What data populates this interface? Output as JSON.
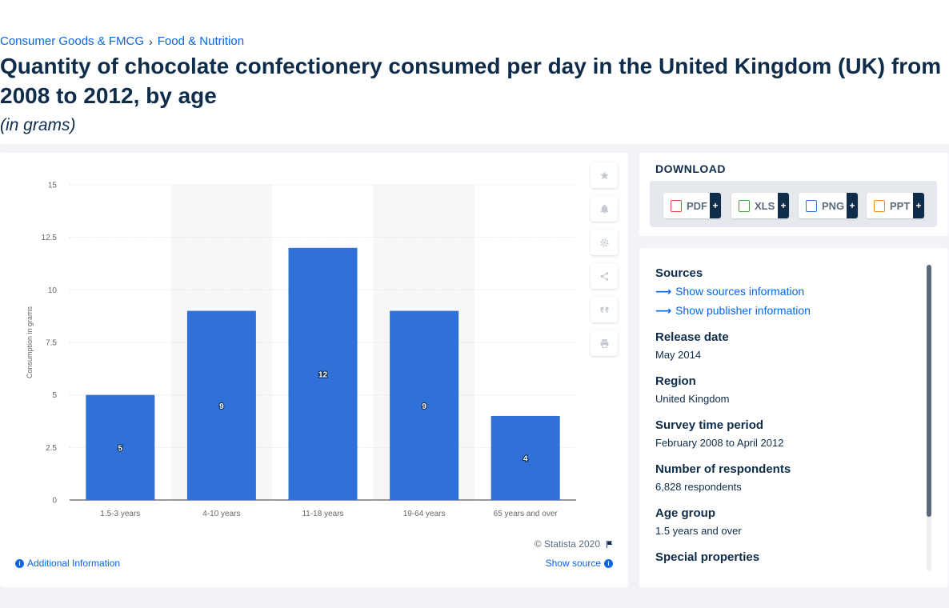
{
  "breadcrumb": {
    "items": [
      "Consumer Goods & FMCG",
      "Food & Nutrition"
    ],
    "separator": "›"
  },
  "page": {
    "title": "Quantity of chocolate confectionery consumed per day in the United Kingdom (UK) from 2008 to 2012, by age",
    "subtitle": "(in grams)"
  },
  "chart_data": {
    "type": "bar",
    "categories": [
      "1.5-3 years",
      "4-10 years",
      "11-18 years",
      "19-64 years",
      "65 years and over"
    ],
    "values": [
      5,
      9,
      12,
      9,
      4
    ],
    "data_labels": [
      "5",
      "9",
      "12",
      "9",
      "4"
    ],
    "ylabel": "Consumption in grams",
    "xlabel": "",
    "ylim": [
      0,
      15
    ],
    "yticks": [
      0,
      2.5,
      5,
      7.5,
      10,
      12.5,
      15
    ],
    "ytick_labels": [
      "0",
      "2.5",
      "5",
      "7.5",
      "10",
      "12.5",
      "15"
    ],
    "grid": true,
    "bar_color": "#2f71d8"
  },
  "chart_footer": {
    "copyright": "© Statista 2020",
    "additional_info": "Additional Information",
    "show_source": "Show source"
  },
  "side_tools": [
    "star-icon",
    "bell-icon",
    "gear-icon",
    "share-icon",
    "quote-icon",
    "print-icon"
  ],
  "download": {
    "heading": "DOWNLOAD",
    "buttons": [
      {
        "label": "PDF",
        "color": "#e2473b",
        "plus": "+"
      },
      {
        "label": "XLS",
        "color": "#3da73a",
        "plus": "+"
      },
      {
        "label": "PNG",
        "color": "#2f71d8",
        "plus": "+"
      },
      {
        "label": "PPT",
        "color": "#f08a24",
        "plus": "+"
      }
    ]
  },
  "sources": {
    "heading": "Sources",
    "show_sources": "Show sources information",
    "show_publisher": "Show publisher information",
    "fields": [
      {
        "label": "Release date",
        "value": "May 2014"
      },
      {
        "label": "Region",
        "value": "United Kingdom"
      },
      {
        "label": "Survey time period",
        "value": "February 2008 to April 2012"
      },
      {
        "label": "Number of respondents",
        "value": "6,828 respondents"
      },
      {
        "label": "Age group",
        "value": "1.5 years and over"
      },
      {
        "label": "Special properties",
        "value": ""
      }
    ]
  }
}
